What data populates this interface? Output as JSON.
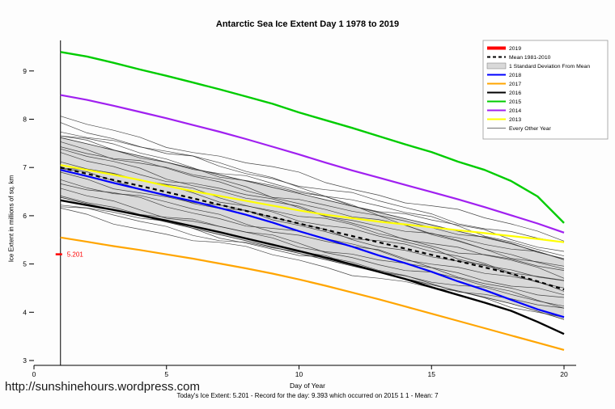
{
  "page": {
    "title": "Antarctic Sea Ice Extent Day 1 1978 to 2019",
    "xlabel": "Day of Year",
    "ylabel": "Ice Extent in millions of sq. km",
    "footer_stats": "Today's Ice Extent: 5.201  - Record for the day: 9.393 which occurred on 2015 1 1  - Mean: 7",
    "site_url": "http://sunshinehours.wordpress.com"
  },
  "legend": {
    "items": [
      {
        "label": "2019",
        "color": "#ff0000",
        "style": "line-thick"
      },
      {
        "label": "Mean 1981-2010",
        "color": "#000000",
        "style": "line-dashed"
      },
      {
        "label": "1 Standard Deviation From Mean",
        "color": "#d9d9d9",
        "style": "box"
      },
      {
        "label": "2018",
        "color": "#0000ff",
        "style": "line"
      },
      {
        "label": "2017",
        "color": "#ffa500",
        "style": "line"
      },
      {
        "label": "2016",
        "color": "#000000",
        "style": "line"
      },
      {
        "label": "2015",
        "color": "#00cc00",
        "style": "line"
      },
      {
        "label": "2014",
        "color": "#a020f0",
        "style": "line"
      },
      {
        "label": "2013",
        "color": "#ffff00",
        "style": "line"
      },
      {
        "label": "Every Other Year",
        "color": "#444444",
        "style": "line-thin"
      }
    ]
  },
  "chart_data": {
    "type": "line",
    "title": "Antarctic Sea Ice Extent Day 1 1978 to 2019",
    "xlabel": "Day of Year",
    "ylabel": "Ice Extent in millions of sq. km",
    "xlim": [
      0,
      21
    ],
    "ylim": [
      2.9,
      9.6
    ],
    "xticks": [
      0,
      5,
      10,
      15,
      20
    ],
    "yticks": [
      3,
      4,
      5,
      6,
      7,
      8,
      9
    ],
    "grid": false,
    "legend_position": "top-right",
    "day_marker_x": 1,
    "x_days": [
      1,
      2,
      3,
      4,
      5,
      6,
      7,
      8,
      9,
      10,
      11,
      12,
      13,
      14,
      15,
      16,
      17,
      18,
      19,
      20
    ],
    "band": {
      "name": "1 Standard Deviation From Mean",
      "fill": "#d9d9d9",
      "edge": "#333333",
      "upper": [
        7.62,
        7.49,
        7.36,
        7.24,
        7.11,
        6.98,
        6.85,
        6.72,
        6.59,
        6.46,
        6.33,
        6.2,
        6.07,
        5.94,
        5.81,
        5.68,
        5.55,
        5.42,
        5.26,
        5.09
      ],
      "lower": [
        6.38,
        6.25,
        6.12,
        6.0,
        5.87,
        5.74,
        5.61,
        5.48,
        5.35,
        5.22,
        5.09,
        4.96,
        4.83,
        4.7,
        4.57,
        4.44,
        4.31,
        4.18,
        4.02,
        3.85
      ]
    },
    "series": [
      {
        "name": "Mean 1981-2010",
        "color": "#000000",
        "width": 2.2,
        "dash": "5,4",
        "values": [
          7.0,
          6.87,
          6.74,
          6.62,
          6.49,
          6.36,
          6.23,
          6.1,
          5.97,
          5.84,
          5.71,
          5.58,
          5.45,
          5.32,
          5.19,
          5.06,
          4.93,
          4.8,
          4.64,
          4.47
        ]
      },
      {
        "name": "2013",
        "color": "#ffff00",
        "width": 2.2,
        "values": [
          7.05,
          6.95,
          6.85,
          6.74,
          6.62,
          6.51,
          6.41,
          6.31,
          6.21,
          6.11,
          6.02,
          5.95,
          5.88,
          5.82,
          5.76,
          5.7,
          5.64,
          5.58,
          5.52,
          5.45
        ]
      },
      {
        "name": "2014",
        "color": "#a020f0",
        "width": 2.2,
        "values": [
          8.5,
          8.4,
          8.28,
          8.15,
          8.02,
          7.88,
          7.74,
          7.59,
          7.43,
          7.27,
          7.1,
          6.94,
          6.79,
          6.64,
          6.49,
          6.34,
          6.18,
          6.01,
          5.84,
          5.65
        ]
      },
      {
        "name": "2015",
        "color": "#00cc00",
        "width": 2.4,
        "values": [
          9.393,
          9.3,
          9.17,
          9.03,
          8.9,
          8.76,
          8.62,
          8.47,
          8.32,
          8.14,
          7.98,
          7.82,
          7.65,
          7.48,
          7.32,
          7.12,
          6.95,
          6.72,
          6.4,
          5.85
        ]
      },
      {
        "name": "2016",
        "color": "#000000",
        "width": 2.4,
        "values": [
          6.32,
          6.22,
          6.12,
          6.01,
          5.9,
          5.78,
          5.66,
          5.53,
          5.4,
          5.27,
          5.13,
          4.99,
          4.84,
          4.69,
          4.52,
          4.36,
          4.2,
          4.03,
          3.8,
          3.55
        ]
      },
      {
        "name": "2017",
        "color": "#ffa500",
        "width": 2.2,
        "values": [
          5.55,
          5.46,
          5.37,
          5.29,
          5.2,
          5.11,
          5.01,
          4.91,
          4.8,
          4.68,
          4.55,
          4.41,
          4.27,
          4.12,
          3.97,
          3.82,
          3.67,
          3.52,
          3.37,
          3.22
        ]
      },
      {
        "name": "2018",
        "color": "#0000ff",
        "width": 2.2,
        "values": [
          6.95,
          6.82,
          6.68,
          6.55,
          6.42,
          6.3,
          6.16,
          6.02,
          5.86,
          5.68,
          5.52,
          5.36,
          5.18,
          5.02,
          4.84,
          4.64,
          4.46,
          4.26,
          4.06,
          3.9
        ]
      },
      {
        "name": "2019",
        "color": "#ff0000",
        "width": 4,
        "point_only": true,
        "values": [
          5.201
        ]
      }
    ],
    "every_other_year": {
      "label": "Every Other Year",
      "color": "#2a2a2a",
      "lines_start_end": [
        [
          8.0,
          5.55
        ],
        [
          7.9,
          5.2
        ],
        [
          7.8,
          5.4
        ],
        [
          7.7,
          5.1
        ],
        [
          7.62,
          5.28
        ],
        [
          7.52,
          4.92
        ],
        [
          7.45,
          5.06
        ],
        [
          7.35,
          4.76
        ],
        [
          7.26,
          4.96
        ],
        [
          7.16,
          4.62
        ],
        [
          7.06,
          4.82
        ],
        [
          6.96,
          4.52
        ],
        [
          6.86,
          4.66
        ],
        [
          6.76,
          4.32
        ],
        [
          6.66,
          4.46
        ],
        [
          6.52,
          4.16
        ],
        [
          6.42,
          4.3
        ],
        [
          6.3,
          4.02
        ],
        [
          6.2,
          4.12
        ],
        [
          6.1,
          3.92
        ]
      ]
    },
    "annotation": {
      "text": "5.201",
      "x": 1,
      "y": 5.201,
      "color": "#ff0000"
    }
  }
}
